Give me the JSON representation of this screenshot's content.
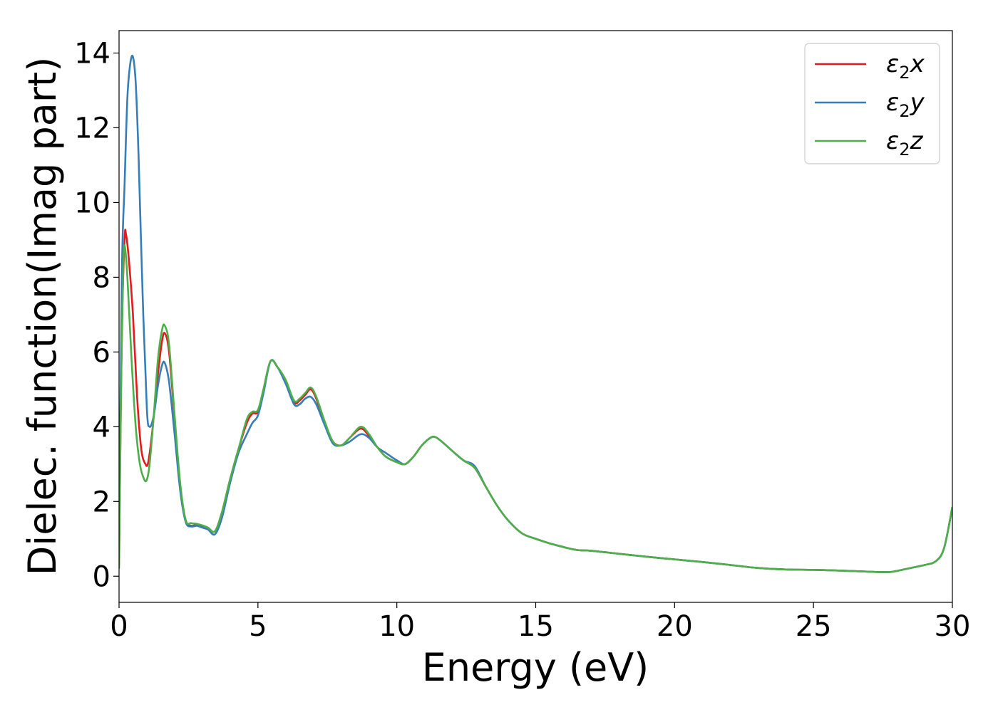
{
  "chart_data": {
    "type": "line",
    "title": "",
    "xlabel": "Energy (eV)",
    "ylabel": "Dielec. function(Imag part)",
    "xlim": [
      0,
      30
    ],
    "ylim": [
      -0.7,
      14.6
    ],
    "xticks": [
      0,
      5,
      10,
      15,
      20,
      25,
      30
    ],
    "yticks": [
      0,
      2,
      4,
      6,
      8,
      10,
      12,
      14
    ],
    "grid": false,
    "legend_position": "top-right",
    "series": [
      {
        "name": "ε2x",
        "legend_main": "ε",
        "legend_sub": "2",
        "legend_tail": "x",
        "color": "#e41a1c",
        "x": [
          0,
          0.1,
          0.2,
          0.25,
          0.35,
          0.5,
          0.65,
          0.8,
          0.95,
          1.05,
          1.2,
          1.4,
          1.55,
          1.65,
          1.8,
          2.0,
          2.2,
          2.4,
          2.6,
          2.8,
          3.0,
          3.2,
          3.45,
          3.7,
          4.0,
          4.3,
          4.6,
          4.8,
          5.0,
          5.2,
          5.45,
          5.7,
          6.0,
          6.3,
          6.5,
          6.7,
          6.9,
          7.1,
          7.4,
          7.7,
          8.0,
          8.3,
          8.7,
          9.0,
          9.3,
          9.6,
          10.0,
          10.3,
          10.6,
          10.9,
          11.2,
          11.4,
          11.7,
          12.0,
          12.4,
          12.8,
          13.2,
          13.6,
          14.0,
          14.5,
          15.0,
          15.5,
          16.0,
          16.5,
          17.0,
          18.0,
          19.0,
          20.0,
          21.0,
          22.0,
          23.0,
          24.0,
          25.0,
          26.0,
          27.0,
          27.7,
          28.0,
          28.5,
          29.0,
          29.4,
          29.7,
          30.0
        ],
        "values": [
          0.3,
          6.5,
          9.0,
          9.15,
          8.5,
          7.0,
          4.8,
          3.4,
          3.0,
          3.05,
          3.9,
          5.4,
          6.3,
          6.5,
          6.0,
          4.2,
          2.4,
          1.5,
          1.35,
          1.38,
          1.35,
          1.3,
          1.2,
          1.7,
          2.6,
          3.4,
          4.1,
          4.35,
          4.4,
          5.0,
          5.75,
          5.6,
          5.2,
          4.65,
          4.7,
          4.85,
          5.0,
          4.75,
          4.1,
          3.6,
          3.5,
          3.7,
          3.95,
          3.75,
          3.45,
          3.2,
          3.05,
          3.0,
          3.2,
          3.5,
          3.7,
          3.72,
          3.55,
          3.35,
          3.1,
          2.9,
          2.4,
          1.9,
          1.5,
          1.15,
          1.0,
          0.88,
          0.78,
          0.7,
          0.68,
          0.6,
          0.52,
          0.45,
          0.38,
          0.3,
          0.22,
          0.18,
          0.17,
          0.15,
          0.12,
          0.11,
          0.14,
          0.22,
          0.3,
          0.4,
          0.75,
          1.85
        ]
      },
      {
        "name": "ε2y",
        "legend_main": "ε",
        "legend_sub": "2",
        "legend_tail": "y",
        "color": "#377eb8",
        "x": [
          0,
          0.1,
          0.2,
          0.3,
          0.4,
          0.5,
          0.6,
          0.7,
          0.85,
          1.0,
          1.1,
          1.25,
          1.4,
          1.55,
          1.65,
          1.8,
          2.0,
          2.2,
          2.4,
          2.6,
          2.8,
          3.0,
          3.2,
          3.45,
          3.7,
          4.0,
          4.3,
          4.6,
          4.8,
          5.0,
          5.2,
          5.45,
          5.7,
          6.0,
          6.3,
          6.5,
          6.7,
          6.9,
          7.1,
          7.4,
          7.7,
          8.0,
          8.3,
          8.7,
          9.0,
          9.3,
          9.6,
          10.0,
          10.3,
          10.6,
          10.9,
          11.2,
          11.4,
          11.7,
          12.0,
          12.4,
          12.8,
          13.2,
          13.6,
          14.0,
          14.5,
          15.0,
          15.5,
          16.0,
          16.5,
          17.0,
          18.0,
          19.0,
          20.0,
          21.0,
          22.0,
          23.0,
          24.0,
          25.0,
          26.0,
          27.0,
          27.7,
          28.0,
          28.5,
          29.0,
          29.4,
          29.7,
          30.0
        ],
        "values": [
          0.5,
          8.0,
          10.5,
          12.8,
          13.7,
          13.9,
          13.2,
          11.3,
          7.5,
          4.5,
          4.0,
          4.3,
          5.1,
          5.65,
          5.7,
          5.2,
          3.8,
          2.3,
          1.45,
          1.33,
          1.35,
          1.3,
          1.25,
          1.12,
          1.55,
          2.5,
          3.3,
          3.8,
          4.1,
          4.3,
          4.9,
          5.75,
          5.6,
          5.15,
          4.6,
          4.6,
          4.75,
          4.8,
          4.6,
          4.05,
          3.55,
          3.5,
          3.6,
          3.8,
          3.7,
          3.45,
          3.3,
          3.1,
          3.0,
          3.2,
          3.5,
          3.7,
          3.72,
          3.55,
          3.35,
          3.1,
          2.95,
          2.4,
          1.9,
          1.5,
          1.15,
          1.0,
          0.88,
          0.78,
          0.7,
          0.68,
          0.6,
          0.52,
          0.45,
          0.38,
          0.3,
          0.22,
          0.18,
          0.17,
          0.15,
          0.12,
          0.11,
          0.14,
          0.22,
          0.3,
          0.4,
          0.75,
          1.85
        ]
      },
      {
        "name": "ε2z",
        "legend_main": "ε",
        "legend_sub": "2",
        "legend_tail": "z",
        "color": "#4daf4a",
        "x": [
          0,
          0.08,
          0.15,
          0.2,
          0.3,
          0.45,
          0.6,
          0.75,
          0.9,
          1.0,
          1.1,
          1.25,
          1.4,
          1.55,
          1.65,
          1.8,
          2.0,
          2.2,
          2.4,
          2.6,
          2.8,
          3.0,
          3.2,
          3.45,
          3.7,
          4.0,
          4.3,
          4.6,
          4.8,
          5.0,
          5.2,
          5.45,
          5.7,
          6.0,
          6.3,
          6.5,
          6.7,
          6.9,
          7.1,
          7.4,
          7.7,
          8.0,
          8.3,
          8.7,
          9.0,
          9.3,
          9.6,
          10.0,
          10.3,
          10.6,
          10.9,
          11.2,
          11.4,
          11.7,
          12.0,
          12.4,
          12.8,
          13.2,
          13.6,
          14.0,
          14.5,
          15.0,
          15.5,
          16.0,
          16.5,
          17.0,
          18.0,
          19.0,
          20.0,
          21.0,
          22.0,
          23.0,
          24.0,
          25.0,
          26.0,
          27.0,
          27.7,
          28.0,
          28.5,
          29.0,
          29.4,
          29.7,
          30.0
        ],
        "values": [
          0.2,
          5.5,
          8.2,
          8.85,
          8.0,
          5.8,
          4.0,
          3.0,
          2.6,
          2.58,
          3.0,
          4.3,
          5.8,
          6.6,
          6.7,
          6.2,
          4.3,
          2.5,
          1.5,
          1.42,
          1.4,
          1.36,
          1.3,
          1.2,
          1.7,
          2.6,
          3.4,
          4.2,
          4.4,
          4.45,
          5.0,
          5.75,
          5.6,
          5.25,
          4.7,
          4.75,
          4.9,
          5.05,
          4.8,
          4.15,
          3.6,
          3.5,
          3.7,
          4.0,
          3.8,
          3.45,
          3.2,
          3.05,
          3.0,
          3.2,
          3.5,
          3.7,
          3.72,
          3.55,
          3.35,
          3.1,
          2.9,
          2.4,
          1.9,
          1.5,
          1.15,
          1.0,
          0.88,
          0.78,
          0.7,
          0.68,
          0.6,
          0.52,
          0.45,
          0.38,
          0.3,
          0.22,
          0.18,
          0.17,
          0.15,
          0.12,
          0.11,
          0.14,
          0.22,
          0.3,
          0.4,
          0.75,
          1.85
        ]
      }
    ]
  }
}
